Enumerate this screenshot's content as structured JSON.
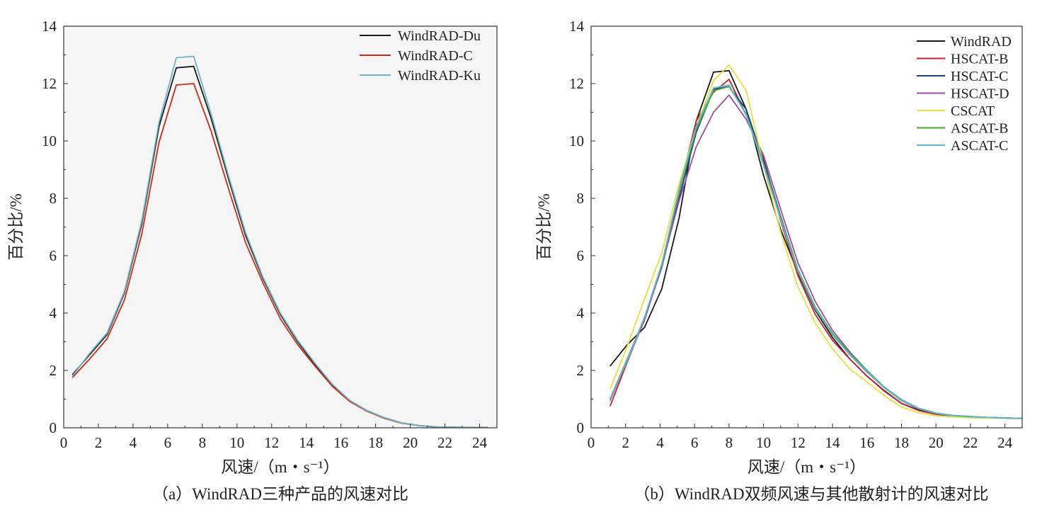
{
  "chart_data": [
    {
      "type": "line",
      "caption": "（a）WindRAD三种产品的风速对比",
      "xlabel": "风速/（m・s⁻¹）",
      "ylabel": "百分比/%",
      "xlim": [
        0,
        25
      ],
      "ylim": [
        0,
        14
      ],
      "xticks": [
        0,
        2,
        4,
        6,
        8,
        10,
        12,
        14,
        16,
        18,
        20,
        22,
        24
      ],
      "yticks": [
        0,
        2,
        4,
        6,
        8,
        10,
        12,
        14
      ],
      "grid": false,
      "legend_position": "top-right",
      "x": [
        0.5,
        1.5,
        2.5,
        3.5,
        4.5,
        5.5,
        6.5,
        7.5,
        8.5,
        9.5,
        10.5,
        11.5,
        12.5,
        13.5,
        14.5,
        15.5,
        16.5,
        17.5,
        18.5,
        19.5,
        20.5,
        21.5,
        22.5,
        23.5,
        24.5
      ],
      "series": [
        {
          "name": "WindRAD-Du",
          "color": "#1a1a1a",
          "values": [
            1.85,
            2.55,
            3.25,
            4.7,
            7.1,
            10.5,
            12.55,
            12.6,
            10.8,
            8.7,
            6.7,
            5.2,
            3.95,
            3.0,
            2.2,
            1.5,
            0.95,
            0.6,
            0.35,
            0.17,
            0.08,
            0.03,
            0.02,
            0.01,
            0.01
          ]
        },
        {
          "name": "WindRAD-C",
          "color": "#cc2a14",
          "values": [
            1.75,
            2.4,
            3.1,
            4.45,
            6.75,
            9.95,
            11.95,
            12.0,
            10.35,
            8.35,
            6.45,
            5.05,
            3.8,
            2.9,
            2.15,
            1.45,
            0.92,
            0.58,
            0.33,
            0.16,
            0.08,
            0.03,
            0.02,
            0.01,
            0.01
          ]
        },
        {
          "name": "WindRAD-Ku",
          "color": "#6fb3c4",
          "values": [
            1.8,
            2.6,
            3.3,
            4.75,
            7.2,
            10.65,
            12.9,
            12.95,
            10.95,
            8.8,
            6.8,
            5.25,
            4.0,
            3.05,
            2.25,
            1.52,
            0.96,
            0.6,
            0.35,
            0.17,
            0.08,
            0.03,
            0.02,
            0.01,
            0.01
          ]
        }
      ]
    },
    {
      "type": "line",
      "caption": "（b）WindRAD双频风速与其他散射计的风速对比",
      "xlabel": "风速/（m・s⁻¹）",
      "ylabel": "百分比/%",
      "xlim": [
        0,
        25
      ],
      "ylim": [
        0,
        14
      ],
      "xticks": [
        0,
        2,
        4,
        6,
        8,
        10,
        12,
        14,
        16,
        18,
        20,
        22,
        24
      ],
      "yticks": [
        0,
        2,
        4,
        6,
        8,
        10,
        12,
        14
      ],
      "grid": false,
      "legend_position": "top-right",
      "x": [
        1.1,
        2.1,
        3.1,
        4.1,
        5.1,
        6.1,
        7.1,
        8.0,
        9.0,
        10.0,
        11.0,
        12.0,
        13.0,
        14.0,
        15.0,
        16.0,
        17.0,
        18.0,
        19.0,
        20.0,
        21.0,
        22.0,
        23.0,
        24.0,
        25.0
      ],
      "series": [
        {
          "name": "WindRAD",
          "color": "#1a1a1a",
          "values": [
            2.15,
            2.9,
            3.5,
            4.85,
            7.3,
            10.7,
            12.4,
            12.45,
            11.1,
            8.8,
            6.9,
            5.4,
            4.1,
            3.15,
            2.4,
            1.8,
            1.3,
            0.85,
            0.62,
            0.48,
            0.42,
            0.38,
            0.36,
            0.34,
            0.33
          ]
        },
        {
          "name": "HSCAT-B",
          "color": "#c8202c",
          "values": [
            0.75,
            2.3,
            3.8,
            5.7,
            8.3,
            10.7,
            11.7,
            12.15,
            10.9,
            9.4,
            7.2,
            5.3,
            3.95,
            3.05,
            2.4,
            1.8,
            1.28,
            0.85,
            0.6,
            0.47,
            0.4,
            0.37,
            0.35,
            0.33,
            0.32
          ]
        },
        {
          "name": "HSCAT-C",
          "color": "#1f3f7a",
          "values": [
            1.0,
            2.4,
            3.8,
            5.6,
            8.0,
            10.3,
            11.8,
            11.9,
            11.1,
            9.3,
            7.35,
            5.5,
            4.2,
            3.25,
            2.55,
            1.95,
            1.4,
            0.95,
            0.66,
            0.5,
            0.42,
            0.38,
            0.36,
            0.34,
            0.33
          ]
        },
        {
          "name": "HSCAT-D",
          "color": "#9c4c9e",
          "values": [
            0.95,
            2.35,
            3.75,
            5.65,
            7.9,
            9.8,
            11.0,
            11.6,
            10.75,
            9.5,
            7.6,
            5.75,
            4.4,
            3.4,
            2.65,
            2.0,
            1.42,
            0.97,
            0.68,
            0.51,
            0.43,
            0.39,
            0.36,
            0.34,
            0.33
          ]
        },
        {
          "name": "CSCAT",
          "color": "#e8e03a",
          "values": [
            1.35,
            2.85,
            4.5,
            6.1,
            8.5,
            10.5,
            12.1,
            12.65,
            11.75,
            9.15,
            6.8,
            4.9,
            3.65,
            2.75,
            2.05,
            1.6,
            1.12,
            0.72,
            0.52,
            0.42,
            0.38,
            0.35,
            0.34,
            0.33,
            0.32
          ]
        },
        {
          "name": "ASCAT-B",
          "color": "#4aa82e",
          "values": [
            1.0,
            2.4,
            3.85,
            5.7,
            8.2,
            10.4,
            11.75,
            11.9,
            10.95,
            9.2,
            7.3,
            5.5,
            4.2,
            3.3,
            2.6,
            2.0,
            1.42,
            0.98,
            0.68,
            0.51,
            0.43,
            0.39,
            0.36,
            0.34,
            0.33
          ]
        },
        {
          "name": "ASCAT-C",
          "color": "#5fb8d4",
          "values": [
            1.0,
            2.35,
            3.85,
            5.7,
            8.3,
            10.5,
            11.85,
            11.95,
            10.9,
            9.15,
            7.25,
            5.45,
            4.15,
            3.25,
            2.55,
            1.97,
            1.4,
            0.96,
            0.67,
            0.5,
            0.42,
            0.38,
            0.36,
            0.34,
            0.33
          ]
        }
      ]
    }
  ]
}
